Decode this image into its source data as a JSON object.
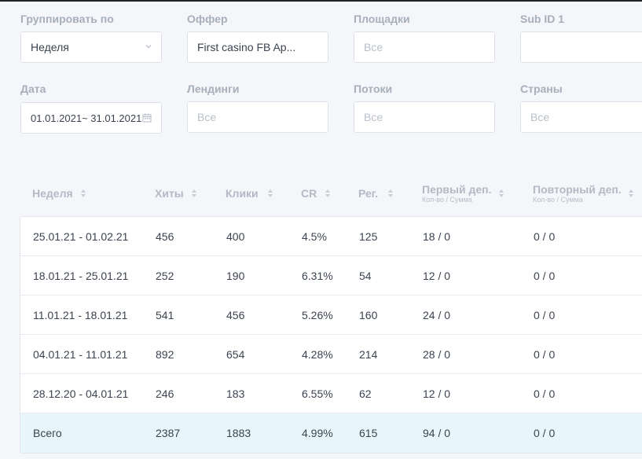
{
  "filters": {
    "group_by": {
      "label": "Группировать по",
      "value": "Неделя"
    },
    "offer": {
      "label": "Оффер",
      "value": "First casino FB Ap..."
    },
    "platforms": {
      "label": "Площадки",
      "placeholder": "Все"
    },
    "sub_id": {
      "label": "Sub ID 1",
      "value": ""
    },
    "date": {
      "label": "Дата",
      "value": "01.01.2021~ 31.01.2021"
    },
    "landings": {
      "label": "Лендинги",
      "placeholder": "Все"
    },
    "streams": {
      "label": "Потоки",
      "placeholder": "Все"
    },
    "countries": {
      "label": "Страны",
      "placeholder": "Все"
    }
  },
  "table": {
    "headers": {
      "week": "Неделя",
      "hits": "Хиты",
      "clicks": "Клики",
      "cr": "CR",
      "reg": "Рег.",
      "first_dep": "Первый деп.",
      "first_dep_sub": "Кол-во / Сумма",
      "repeat_dep": "Повторный деп.",
      "repeat_dep_sub": "Кол-во / Сумма"
    },
    "rows": [
      {
        "week": "25.01.21 - 01.02.21",
        "hits": "456",
        "clicks": "400",
        "cr": "4.5%",
        "reg": "125",
        "first_dep": "18 / 0",
        "repeat_dep": "0 / 0"
      },
      {
        "week": "18.01.21 - 25.01.21",
        "hits": "252",
        "clicks": "190",
        "cr": "6.31%",
        "reg": "54",
        "first_dep": "12 / 0",
        "repeat_dep": "0 / 0"
      },
      {
        "week": "11.01.21 - 18.01.21",
        "hits": "541",
        "clicks": "456",
        "cr": "5.26%",
        "reg": "160",
        "first_dep": "24 / 0",
        "repeat_dep": "0 / 0"
      },
      {
        "week": "04.01.21 - 11.01.21",
        "hits": "892",
        "clicks": "654",
        "cr": "4.28%",
        "reg": "214",
        "first_dep": "28 / 0",
        "repeat_dep": "0 / 0"
      },
      {
        "week": "28.12.20 - 04.01.21",
        "hits": "246",
        "clicks": "183",
        "cr": "6.55%",
        "reg": "62",
        "first_dep": "12 / 0",
        "repeat_dep": "0 / 0"
      }
    ],
    "total": {
      "week": "Всего",
      "hits": "2387",
      "clicks": "1883",
      "cr": "4.99%",
      "reg": "615",
      "first_dep": "94 / 0",
      "repeat_dep": "0 / 0"
    }
  },
  "colors": {
    "total_row_bg": "#e8f6fc",
    "label": "#a7afbb",
    "border": "#dde2e8"
  },
  "icons": {
    "select_arrow": "chevron-down-icon",
    "date_picker": "calendar-icon",
    "sort": "sort-icon"
  }
}
